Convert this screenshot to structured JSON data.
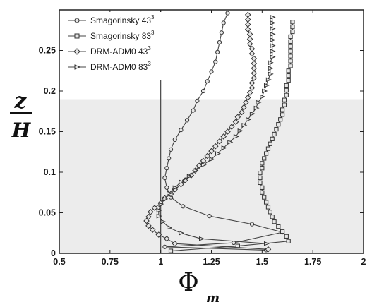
{
  "chart_data": {
    "type": "line",
    "xlabel": "Φ",
    "xlabel_sub": "m",
    "ylabel_top": "z",
    "ylabel_bottom": "H",
    "xlim": [
      0.5,
      2
    ],
    "ylim": [
      0,
      0.3
    ],
    "x_ticks": [
      "0.5",
      "0.75",
      "1",
      "1.25",
      "1.5",
      "1.75",
      "2"
    ],
    "x_tick_values": [
      0.5,
      0.75,
      1,
      1.25,
      1.5,
      1.75,
      2
    ],
    "y_ticks": [
      "0",
      "0.05",
      "0.1",
      "0.15",
      "0.2",
      "0.25"
    ],
    "y_tick_values": [
      0,
      0.05,
      0.1,
      0.15,
      0.2,
      0.25
    ],
    "shaded_region": {
      "y_from": 0,
      "y_to": 0.19,
      "color": "#ececec"
    },
    "reference_line_x": 1,
    "legend": {
      "placement": "top-left"
    },
    "series": [
      {
        "name": "Smagorinsky 43",
        "sup": "3",
        "marker": "circle",
        "points": [
          [
            1.52,
            0.004
          ],
          [
            1.02,
            0.008
          ],
          [
            1.36,
            0.013
          ],
          [
            1.6,
            0.026
          ],
          [
            1.45,
            0.036
          ],
          [
            1.24,
            0.046
          ],
          [
            1.11,
            0.058
          ],
          [
            1.05,
            0.069
          ],
          [
            1.03,
            0.081
          ],
          [
            1.02,
            0.093
          ],
          [
            1.03,
            0.105
          ],
          [
            1.04,
            0.117
          ],
          [
            1.05,
            0.128
          ],
          [
            1.07,
            0.14
          ],
          [
            1.1,
            0.152
          ],
          [
            1.13,
            0.164
          ],
          [
            1.16,
            0.176
          ],
          [
            1.18,
            0.188
          ],
          [
            1.21,
            0.2
          ],
          [
            1.23,
            0.212
          ],
          [
            1.25,
            0.224
          ],
          [
            1.27,
            0.236
          ],
          [
            1.28,
            0.248
          ],
          [
            1.29,
            0.26
          ],
          [
            1.3,
            0.272
          ],
          [
            1.31,
            0.284
          ],
          [
            1.33,
            0.296
          ]
        ]
      },
      {
        "name": "Smagorinsky 83",
        "sup": "3",
        "marker": "square",
        "points": [
          [
            1.05,
            0.003
          ],
          [
            1.38,
            0.009
          ],
          [
            1.63,
            0.015
          ],
          [
            1.62,
            0.021
          ],
          [
            1.6,
            0.027
          ],
          [
            1.58,
            0.033
          ],
          [
            1.56,
            0.039
          ],
          [
            1.55,
            0.045
          ],
          [
            1.54,
            0.051
          ],
          [
            1.53,
            0.057
          ],
          [
            1.52,
            0.063
          ],
          [
            1.51,
            0.069
          ],
          [
            1.5,
            0.075
          ],
          [
            1.5,
            0.081
          ],
          [
            1.49,
            0.087
          ],
          [
            1.49,
            0.093
          ],
          [
            1.49,
            0.099
          ],
          [
            1.5,
            0.105
          ],
          [
            1.5,
            0.111
          ],
          [
            1.51,
            0.117
          ],
          [
            1.52,
            0.123
          ],
          [
            1.53,
            0.129
          ],
          [
            1.54,
            0.135
          ],
          [
            1.55,
            0.141
          ],
          [
            1.56,
            0.147
          ],
          [
            1.57,
            0.153
          ],
          [
            1.58,
            0.159
          ],
          [
            1.59,
            0.165
          ],
          [
            1.6,
            0.171
          ],
          [
            1.6,
            0.177
          ],
          [
            1.61,
            0.183
          ],
          [
            1.61,
            0.189
          ],
          [
            1.62,
            0.195
          ],
          [
            1.62,
            0.201
          ],
          [
            1.62,
            0.207
          ],
          [
            1.63,
            0.213
          ],
          [
            1.63,
            0.219
          ],
          [
            1.63,
            0.225
          ],
          [
            1.64,
            0.231
          ],
          [
            1.64,
            0.237
          ],
          [
            1.64,
            0.243
          ],
          [
            1.64,
            0.249
          ],
          [
            1.64,
            0.255
          ],
          [
            1.64,
            0.261
          ],
          [
            1.64,
            0.267
          ],
          [
            1.65,
            0.273
          ],
          [
            1.65,
            0.279
          ],
          [
            1.65,
            0.285
          ]
        ]
      },
      {
        "name": "DRM-ADM0 43",
        "sup": "3",
        "marker": "diamond",
        "points": [
          [
            1.53,
            0.005
          ],
          [
            1.07,
            0.012
          ],
          [
            1.03,
            0.018
          ],
          [
            0.99,
            0.023
          ],
          [
            0.96,
            0.029
          ],
          [
            0.94,
            0.034
          ],
          [
            0.93,
            0.04
          ],
          [
            0.94,
            0.045
          ],
          [
            0.95,
            0.051
          ],
          [
            0.97,
            0.056
          ],
          [
            1.0,
            0.062
          ],
          [
            1.02,
            0.068
          ],
          [
            1.05,
            0.073
          ],
          [
            1.07,
            0.079
          ],
          [
            1.1,
            0.085
          ],
          [
            1.12,
            0.09
          ],
          [
            1.15,
            0.096
          ],
          [
            1.17,
            0.102
          ],
          [
            1.19,
            0.108
          ],
          [
            1.21,
            0.114
          ],
          [
            1.23,
            0.12
          ],
          [
            1.25,
            0.126
          ],
          [
            1.27,
            0.132
          ],
          [
            1.29,
            0.138
          ],
          [
            1.31,
            0.144
          ],
          [
            1.33,
            0.15
          ],
          [
            1.35,
            0.156
          ],
          [
            1.37,
            0.162
          ],
          [
            1.38,
            0.168
          ],
          [
            1.4,
            0.174
          ],
          [
            1.41,
            0.18
          ],
          [
            1.42,
            0.186
          ],
          [
            1.43,
            0.192
          ],
          [
            1.44,
            0.198
          ],
          [
            1.45,
            0.204
          ],
          [
            1.45,
            0.21
          ],
          [
            1.46,
            0.216
          ],
          [
            1.46,
            0.222
          ],
          [
            1.46,
            0.228
          ],
          [
            1.46,
            0.234
          ],
          [
            1.46,
            0.24
          ],
          [
            1.45,
            0.246
          ],
          [
            1.45,
            0.252
          ],
          [
            1.44,
            0.258
          ],
          [
            1.44,
            0.264
          ],
          [
            1.44,
            0.27
          ],
          [
            1.43,
            0.276
          ],
          [
            1.43,
            0.282
          ],
          [
            1.43,
            0.288
          ],
          [
            1.43,
            0.294
          ]
        ]
      },
      {
        "name": "DRM-ADM0 83",
        "sup": "3",
        "marker": "triangle",
        "points": [
          [
            1.52,
            0.012
          ],
          [
            1.2,
            0.018
          ],
          [
            1.1,
            0.025
          ],
          [
            1.04,
            0.032
          ],
          [
            1.01,
            0.039
          ],
          [
            0.99,
            0.046
          ],
          [
            0.99,
            0.053
          ],
          [
            1.0,
            0.06
          ],
          [
            1.02,
            0.067
          ],
          [
            1.04,
            0.074
          ],
          [
            1.07,
            0.081
          ],
          [
            1.1,
            0.088
          ],
          [
            1.14,
            0.095
          ],
          [
            1.17,
            0.102
          ],
          [
            1.21,
            0.109
          ],
          [
            1.25,
            0.116
          ],
          [
            1.28,
            0.123
          ],
          [
            1.31,
            0.13
          ],
          [
            1.34,
            0.137
          ],
          [
            1.37,
            0.144
          ],
          [
            1.39,
            0.151
          ],
          [
            1.41,
            0.158
          ],
          [
            1.43,
            0.165
          ],
          [
            1.45,
            0.172
          ],
          [
            1.47,
            0.179
          ],
          [
            1.48,
            0.186
          ],
          [
            1.5,
            0.193
          ],
          [
            1.51,
            0.2
          ],
          [
            1.52,
            0.207
          ],
          [
            1.53,
            0.214
          ],
          [
            1.54,
            0.221
          ],
          [
            1.54,
            0.228
          ],
          [
            1.54,
            0.235
          ],
          [
            1.55,
            0.242
          ],
          [
            1.55,
            0.249
          ],
          [
            1.55,
            0.256
          ],
          [
            1.55,
            0.263
          ],
          [
            1.55,
            0.27
          ],
          [
            1.55,
            0.277
          ],
          [
            1.55,
            0.284
          ],
          [
            1.55,
            0.291
          ]
        ]
      }
    ]
  }
}
